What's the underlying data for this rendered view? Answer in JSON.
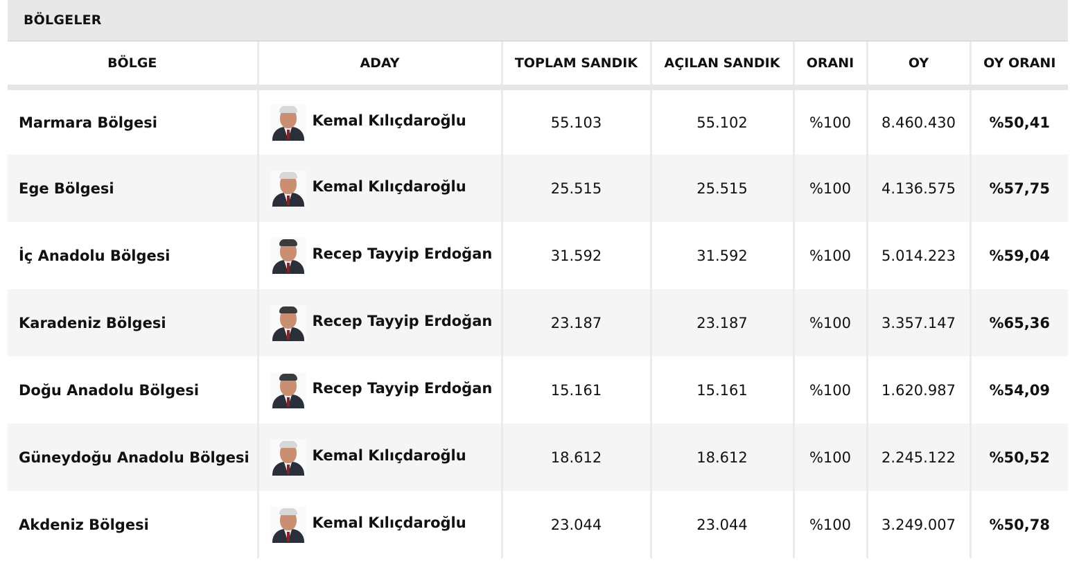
{
  "section_title": "BÖLGELER",
  "headers": [
    "BÖLGE",
    "ADAY",
    "TOPLAM SANDIK",
    "AÇILAN SANDIK",
    "ORANI",
    "OY",
    "OY ORANI"
  ],
  "rows": [
    {
      "region": "Marmara Bölgesi",
      "candidate": "Kemal Kılıçdaroğlu",
      "avatar_icon": "candidate-photo-icon",
      "total": "55.103",
      "opened": "55.102",
      "rate": "%100",
      "votes": "8.460.430",
      "vote_rate": "%50,41"
    },
    {
      "region": "Ege Bölgesi",
      "candidate": "Kemal Kılıçdaroğlu",
      "avatar_icon": "candidate-photo-icon",
      "total": "25.515",
      "opened": "25.515",
      "rate": "%100",
      "votes": "4.136.575",
      "vote_rate": "%57,75"
    },
    {
      "region": "İç Anadolu Bölgesi",
      "candidate": "Recep Tayyip Erdoğan",
      "avatar_icon": "candidate-photo-icon",
      "total": "31.592",
      "opened": "31.592",
      "rate": "%100",
      "votes": "5.014.223",
      "vote_rate": "%59,04"
    },
    {
      "region": "Karadeniz Bölgesi",
      "candidate": "Recep Tayyip Erdoğan",
      "avatar_icon": "candidate-photo-icon",
      "total": "23.187",
      "opened": "23.187",
      "rate": "%100",
      "votes": "3.357.147",
      "vote_rate": "%65,36"
    },
    {
      "region": "Doğu Anadolu Bölgesi",
      "candidate": "Recep Tayyip Erdoğan",
      "avatar_icon": "candidate-photo-icon",
      "total": "15.161",
      "opened": "15.161",
      "rate": "%100",
      "votes": "1.620.987",
      "vote_rate": "%54,09"
    },
    {
      "region": "Güneydoğu Anadolu Bölgesi",
      "candidate": "Kemal Kılıçdaroğlu",
      "avatar_icon": "candidate-photo-icon",
      "total": "18.612",
      "opened": "18.612",
      "rate": "%100",
      "votes": "2.245.122",
      "vote_rate": "%50,52"
    },
    {
      "region": "Akdeniz Bölgesi",
      "candidate": "Kemal Kılıçdaroğlu",
      "avatar_icon": "candidate-photo-icon",
      "total": "23.044",
      "opened": "23.044",
      "rate": "%100",
      "votes": "3.249.007",
      "vote_rate": "%50,78"
    }
  ],
  "colors": {
    "header_band": "#e8e8e8",
    "row_alt": "#f5f5f5",
    "text": "#111111"
  }
}
